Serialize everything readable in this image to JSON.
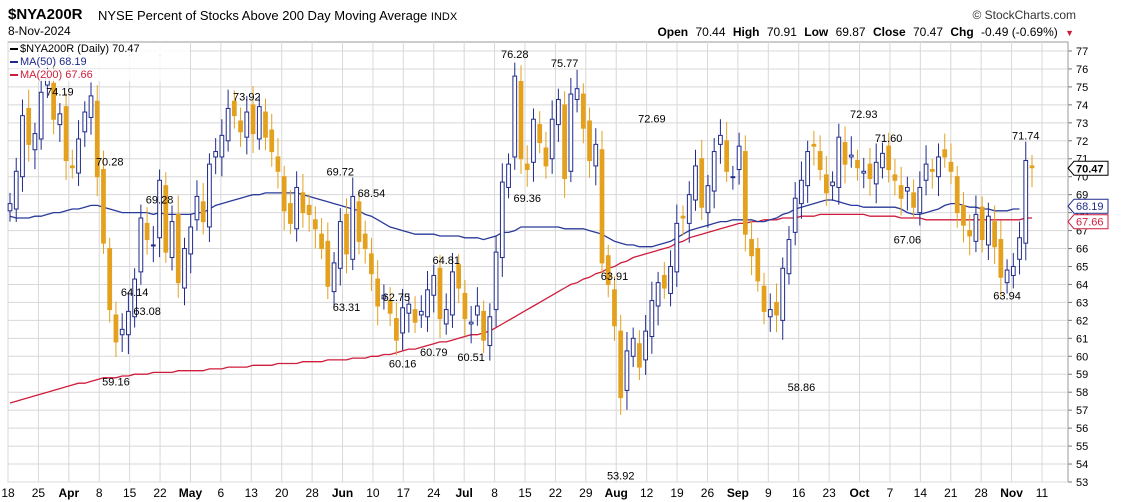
{
  "header": {
    "symbol": "$NYA200R",
    "description": "NYSE Percent of Stocks Above 200 Day Moving Average",
    "exchange": "INDX",
    "date": "8-Nov-2024",
    "brand": "© StockCharts.com",
    "open_label": "Open",
    "open": "70.44",
    "high_label": "High",
    "high": "70.91",
    "low_label": "Low",
    "low": "69.87",
    "close_label": "Close",
    "close": "70.47",
    "chg_label": "Chg",
    "chg": "-0.49 (-0.69%)",
    "chg_arrow": "▼"
  },
  "legend": [
    {
      "text": "$NYA200R (Daily) 70.47",
      "color": "#000000"
    },
    {
      "text": "MA(50) 68.19",
      "color": "#1f2a8c"
    },
    {
      "text": "MA(200) 67.66",
      "color": "#d01c3c"
    }
  ],
  "colors": {
    "up": "#1f2a8c",
    "down": "#e3a11e",
    "ma50": "#2a3a9a",
    "ma200": "#d01c3c",
    "grid": "#d8d8d8"
  },
  "chart_data": {
    "type": "candlestick",
    "title": "$NYA200R (Daily)",
    "ylim": [
      53,
      77.5
    ],
    "y_ticks": [
      53,
      54,
      55,
      56,
      57,
      58,
      59,
      60,
      61,
      62,
      63,
      64,
      65,
      66,
      67,
      68,
      69,
      70,
      71,
      72,
      73,
      74,
      75,
      76,
      77
    ],
    "x_tick_labels": [
      "18",
      "25",
      "Apr",
      "8",
      "15",
      "22",
      "May",
      "6",
      "13",
      "20",
      "28",
      "Jun",
      "10",
      "17",
      "24",
      "Jul",
      "8",
      "15",
      "22",
      "29",
      "Aug",
      "12",
      "19",
      "26",
      "Sep",
      "9",
      "16",
      "23",
      "Oct",
      "7",
      "14",
      "21",
      "28",
      "Nov",
      "11"
    ],
    "x_tick_bold": [
      "Apr",
      "May",
      "Jun",
      "Jul",
      "Aug",
      "Sep",
      "Oct",
      "Nov"
    ],
    "price_labels": [
      {
        "label": "70.28"
      },
      {
        "label": "74.19"
      },
      {
        "label": "59.16"
      },
      {
        "label": "69.28"
      },
      {
        "label": "64.14"
      },
      {
        "label": "63.08"
      },
      {
        "label": "73.92"
      },
      {
        "label": "69.72"
      },
      {
        "label": "63.31"
      },
      {
        "label": "68.54"
      },
      {
        "label": "62.75"
      },
      {
        "label": "60.16"
      },
      {
        "label": "64.81"
      },
      {
        "label": "60.79"
      },
      {
        "label": "60.51"
      },
      {
        "label": "76.28"
      },
      {
        "label": "69.36"
      },
      {
        "label": "75.77"
      },
      {
        "label": "63.91"
      },
      {
        "label": "53.92"
      },
      {
        "label": "72.69"
      },
      {
        "label": "58.86"
      },
      {
        "label": "72.93"
      },
      {
        "label": "71.60"
      },
      {
        "label": "67.06"
      },
      {
        "label": "71.74"
      },
      {
        "label": "63.94"
      }
    ],
    "right_markers": [
      {
        "label": "70.47",
        "color": "#000000"
      },
      {
        "label": "68.19",
        "color": "#1f2a8c"
      },
      {
        "label": "67.66",
        "color": "#d01c3c"
      }
    ],
    "close": [
      68.5,
      70.3,
      73.4,
      71.8,
      72.4,
      74.7,
      75.5,
      73.2,
      73.5,
      70.9,
      70.5,
      72.1,
      73.6,
      74.5,
      70.0,
      66.3,
      62.6,
      60.8,
      61.5,
      62.5,
      64.3,
      67.7,
      66.5,
      66.2,
      69.8,
      65.8,
      67.5,
      64.1,
      66.0,
      67.2,
      68.9,
      67.5,
      70.7,
      71.4,
      72.3,
      73.8,
      73.4,
      72.5,
      73.6,
      72.4,
      73.9,
      72.2,
      71.4,
      70.3,
      68.1,
      67.4,
      69.4,
      68.0,
      67.9,
      67.1,
      66.0,
      63.9,
      65.2,
      67.5,
      65.7,
      68.9,
      66.4,
      66.0,
      64.6,
      62.8,
      63.4,
      62.4,
      60.9,
      62.7,
      62.9,
      61.9,
      62.5,
      63.7,
      64.5,
      62.1,
      62.6,
      64.7,
      63.8,
      62.1,
      61.9,
      62.8,
      60.9,
      62.2,
      65.8,
      69.7,
      70.7,
      75.6,
      71.0,
      70.4,
      73.2,
      71.9,
      70.6,
      73.2,
      74.3,
      69.9,
      74.6,
      74.9,
      72.7,
      70.9,
      71.8,
      65.2,
      64.0,
      61.7,
      57.7,
      60.3,
      61.0,
      59.4,
      61.4,
      63.1,
      64.1,
      63.8,
      65.0,
      67.4,
      67.7,
      69.0,
      70.6,
      68.3,
      69.5,
      71.4,
      72.3,
      70.3,
      70.0,
      71.7,
      66.8,
      65.6,
      64.2,
      62.5,
      62.6,
      62.3,
      64.9,
      66.5,
      68.8,
      69.8,
      71.4,
      71.7,
      70.4,
      69.1,
      69.7,
      72.2,
      70.7,
      71.2,
      70.5,
      70.3,
      69.9,
      70.8,
      71.3,
      70.4,
      69.8,
      68.8,
      69.4,
      68.3,
      69.4,
      70.7,
      70.3,
      71.1,
      71.1,
      70.3,
      68.0,
      67.3,
      66.7,
      67.9,
      66.5,
      67.8,
      66.1,
      64.4,
      64.8,
      65.0,
      66.6,
      70.9,
      70.5
    ],
    "ma50": [
      67.8,
      67.7,
      67.7,
      67.7,
      67.8,
      67.8,
      67.9,
      68.0,
      68.0,
      68.1,
      68.2,
      68.2,
      68.3,
      68.4,
      68.4,
      68.3,
      68.2,
      68.1,
      68.0,
      68.0,
      68.0,
      68.0,
      68.0,
      67.9,
      68.0,
      67.9,
      67.9,
      67.9,
      67.9,
      67.9,
      68.0,
      68.0,
      68.2,
      68.4,
      68.5,
      68.6,
      68.7,
      68.8,
      68.9,
      69.0,
      69.0,
      69.1,
      69.1,
      69.1,
      69.1,
      69.1,
      69.1,
      69.0,
      68.9,
      68.8,
      68.7,
      68.6,
      68.5,
      68.4,
      68.3,
      68.2,
      68.1,
      67.9,
      67.8,
      67.6,
      67.4,
      67.2,
      67.1,
      67.0,
      66.9,
      66.8,
      66.8,
      66.8,
      66.8,
      66.7,
      66.7,
      66.7,
      66.7,
      66.6,
      66.6,
      66.6,
      66.5,
      66.6,
      66.7,
      66.9,
      66.9,
      67.0,
      67.2,
      67.2,
      67.2,
      67.2,
      67.2,
      67.2,
      67.2,
      67.1,
      67.1,
      67.1,
      67.1,
      67.0,
      66.9,
      66.8,
      66.6,
      66.4,
      66.3,
      66.2,
      66.2,
      66.1,
      66.1,
      66.1,
      66.2,
      66.3,
      66.4,
      66.6,
      66.8,
      67.0,
      67.1,
      67.2,
      67.3,
      67.4,
      67.5,
      67.5,
      67.6,
      67.6,
      67.6,
      67.6,
      67.5,
      67.5,
      67.6,
      67.7,
      67.9,
      68.0,
      68.2,
      68.3,
      68.4,
      68.5,
      68.6,
      68.7,
      68.7,
      68.6,
      68.5,
      68.4,
      68.4,
      68.3,
      68.3,
      68.3,
      68.3,
      68.3,
      68.3,
      68.2,
      68.0,
      67.9,
      67.9,
      68.0,
      68.1,
      68.2,
      68.4,
      68.5,
      68.5,
      68.4,
      68.3,
      68.3,
      68.2,
      68.2,
      68.1,
      68.1,
      68.1,
      68.2,
      68.2
    ],
    "ma200": [
      57.4,
      57.5,
      57.6,
      57.7,
      57.8,
      57.9,
      58.0,
      58.1,
      58.2,
      58.3,
      58.4,
      58.5,
      58.5,
      58.6,
      58.7,
      58.8,
      58.8,
      58.8,
      58.9,
      58.9,
      59.0,
      59.0,
      59.0,
      59.1,
      59.1,
      59.1,
      59.1,
      59.2,
      59.2,
      59.2,
      59.2,
      59.2,
      59.3,
      59.3,
      59.3,
      59.4,
      59.4,
      59.4,
      59.4,
      59.5,
      59.5,
      59.5,
      59.5,
      59.6,
      59.6,
      59.6,
      59.6,
      59.7,
      59.7,
      59.7,
      59.7,
      59.8,
      59.8,
      59.8,
      59.8,
      59.9,
      59.9,
      59.9,
      60.0,
      60.0,
      60.1,
      60.1,
      60.2,
      60.3,
      60.4,
      60.4,
      60.5,
      60.6,
      60.7,
      60.8,
      60.8,
      60.9,
      61.0,
      61.1,
      61.2,
      61.2,
      61.3,
      61.4,
      61.6,
      61.8,
      62.0,
      62.2,
      62.4,
      62.6,
      62.8,
      63.0,
      63.2,
      63.4,
      63.6,
      63.8,
      64.0,
      64.1,
      64.3,
      64.4,
      64.6,
      64.7,
      64.9,
      65.0,
      65.2,
      65.3,
      65.5,
      65.6,
      65.7,
      65.8,
      65.9,
      66.0,
      66.1,
      66.3,
      66.4,
      66.6,
      66.7,
      66.8,
      66.9,
      67.0,
      67.1,
      67.2,
      67.3,
      67.4,
      67.4,
      67.5,
      67.5,
      67.6,
      67.6,
      67.6,
      67.7,
      67.7,
      67.7,
      67.8,
      67.8,
      67.8,
      67.9,
      67.9,
      67.9,
      67.9,
      67.9,
      67.9,
      67.9,
      67.9,
      67.8,
      67.8,
      67.8,
      67.8,
      67.8,
      67.7,
      67.7,
      67.7,
      67.7,
      67.6,
      67.6,
      67.6,
      67.6,
      67.6,
      67.6,
      67.6,
      67.6,
      67.6,
      67.6,
      67.6,
      67.6,
      67.6,
      67.6,
      67.6,
      67.6,
      67.7,
      67.7
    ]
  }
}
